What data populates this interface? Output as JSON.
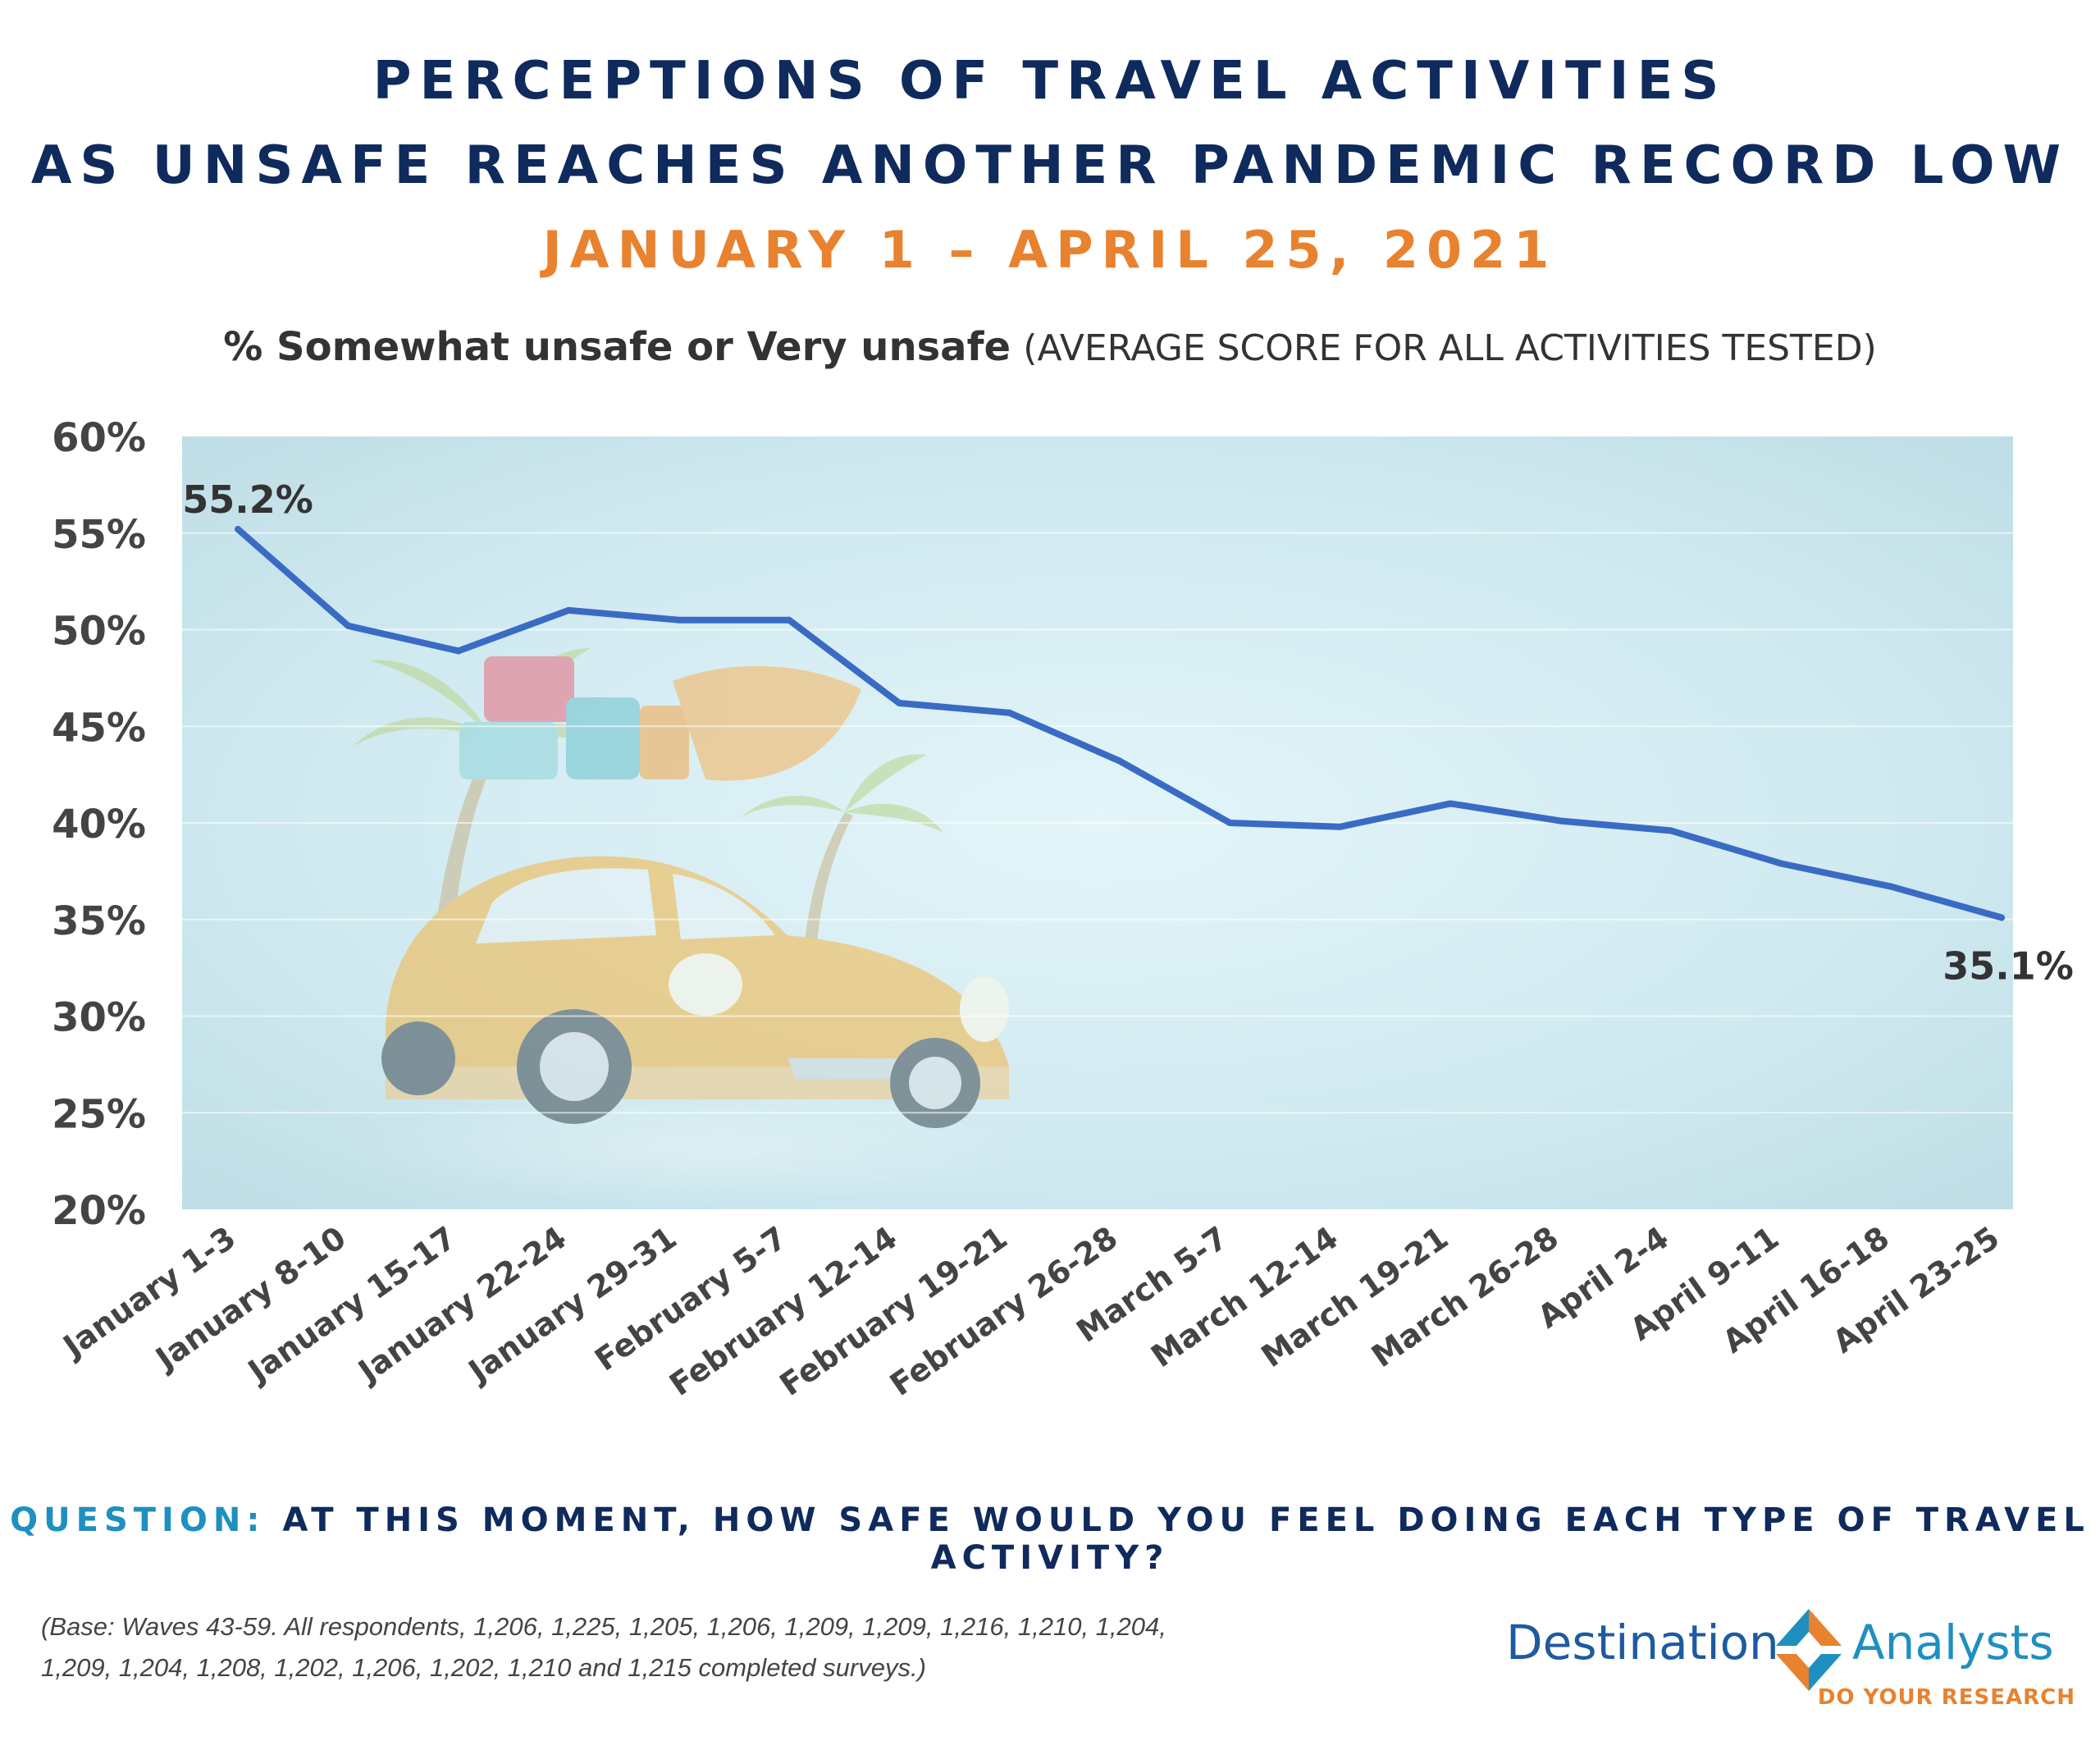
{
  "header": {
    "title_line1": "PERCEPTIONS OF TRAVEL ACTIVITIES",
    "title_line2": "AS UNSAFE REACHES ANOTHER PANDEMIC RECORD LOW",
    "date_range": "JANUARY 1 – APRIL 25, 2021",
    "subtitle_bold": "% Somewhat unsafe or Very unsafe",
    "subtitle_rest": "(AVERAGE SCORE FOR ALL ACTIVITIES TESTED)"
  },
  "chart_data": {
    "type": "line",
    "ylabel": "",
    "xlabel": "",
    "ylim": [
      20,
      60
    ],
    "yticks": [
      "20%",
      "25%",
      "30%",
      "35%",
      "40%",
      "45%",
      "50%",
      "55%",
      "60%"
    ],
    "grid": true,
    "legend": "none",
    "line_color": "#3a6bc4",
    "categories": [
      "January 1-3",
      "January 8-10",
      "January 15-17",
      "January 22-24",
      "January 29-31",
      "February 5-7",
      "February 12-14",
      "February 19-21",
      "February 26-28",
      "March 5-7",
      "March 12-14",
      "March 19-21",
      "March 26-28",
      "April 2-4",
      "April 9-11",
      "April 16-18",
      "April 23-25"
    ],
    "values": [
      55.2,
      50.2,
      48.9,
      51.0,
      50.5,
      50.5,
      46.2,
      45.7,
      43.2,
      40.0,
      39.8,
      41.0,
      40.1,
      39.6,
      37.9,
      36.7,
      35.1
    ],
    "annotations": [
      {
        "index": 0,
        "text": "55.2%"
      },
      {
        "index": 16,
        "text": "35.1%"
      }
    ]
  },
  "footer": {
    "question_label": "QUESTION:",
    "question_text": "AT THIS MOMENT, HOW SAFE WOULD YOU FEEL DOING EACH TYPE OF TRAVEL ACTIVITY?",
    "base_line1": "(Base: Waves 43-59. All respondents, 1,206, 1,225, 1,205, 1,206, 1,209, 1,209, 1,216, 1,210, 1,204,",
    "base_line2": "1,209, 1,204, 1,208, 1,202, 1,206, 1,202, 1,210 and 1,215 completed surveys.)"
  },
  "logo": {
    "name_left": "Destination",
    "name_right": "Analysts",
    "tagline": "DO YOUR RESEARCH",
    "colors": {
      "blue": "#1e5aa0",
      "light_blue": "#1f8fc0",
      "orange": "#e8822f"
    }
  }
}
